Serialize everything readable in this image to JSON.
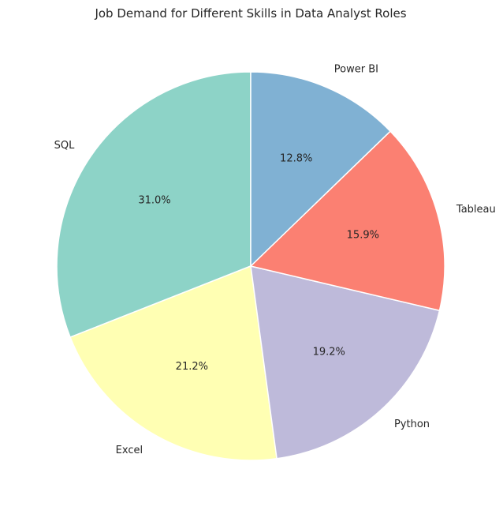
{
  "chart_data": {
    "type": "pie",
    "title": "Job Demand for Different Skills in Data Analyst Roles",
    "categories": [
      "SQL",
      "Excel",
      "Python",
      "Tableau",
      "Power BI"
    ],
    "values": [
      31.0,
      21.2,
      19.2,
      15.9,
      12.8
    ],
    "value_labels": [
      "31.0%",
      "21.2%",
      "19.2%",
      "15.9%",
      "12.8%"
    ],
    "colors": [
      "#8dd3c7",
      "#ffffb3",
      "#bebada",
      "#fb8072",
      "#80b1d3"
    ],
    "start_angle_deg": 90,
    "direction": "counterclockwise",
    "legend": "none"
  }
}
